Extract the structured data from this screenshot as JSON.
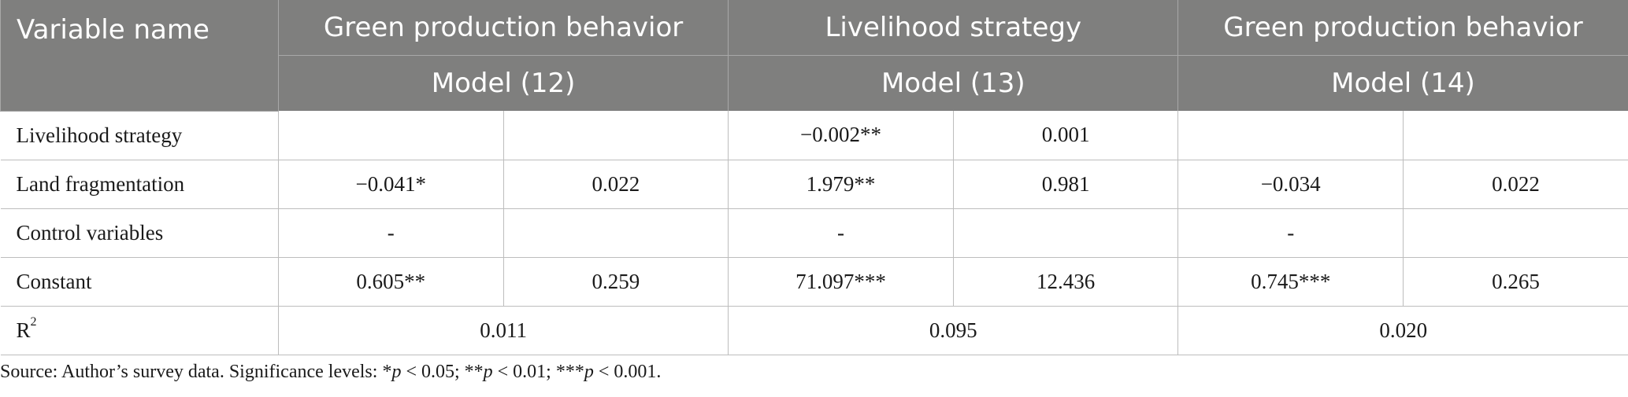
{
  "table": {
    "header": {
      "variable_name": "Variable name",
      "groups": [
        {
          "title": "Green production behavior",
          "model": "Model (12)"
        },
        {
          "title": "Livelihood strategy",
          "model": "Model (13)"
        },
        {
          "title": "Green production behavior",
          "model": "Model (14)"
        }
      ]
    },
    "rows": [
      {
        "label": "Livelihood strategy",
        "cells": [
          "",
          "",
          "−0.002**",
          "0.001",
          "",
          ""
        ]
      },
      {
        "label": "Land fragmentation",
        "cells": [
          "−0.041*",
          "0.022",
          "1.979**",
          "0.981",
          "−0.034",
          "0.022"
        ]
      },
      {
        "label": "Control variables",
        "cells": [
          "-",
          "",
          "-",
          "",
          "-",
          ""
        ]
      },
      {
        "label": "Constant",
        "cells": [
          "0.605**",
          "0.259",
          "71.097***",
          "12.436",
          "0.745***",
          "0.265"
        ]
      }
    ],
    "r2": {
      "label": "R",
      "superscript": "2",
      "values": [
        "0.011",
        "0.095",
        "0.020"
      ]
    }
  },
  "note": {
    "prefix": "Source: Author’s survey data. Significance levels: *",
    "p1": "p",
    "t1": " < 0.05; **",
    "p2": "p",
    "t2": " < 0.01; ***",
    "p3": "p",
    "t3": " < 0.001."
  }
}
